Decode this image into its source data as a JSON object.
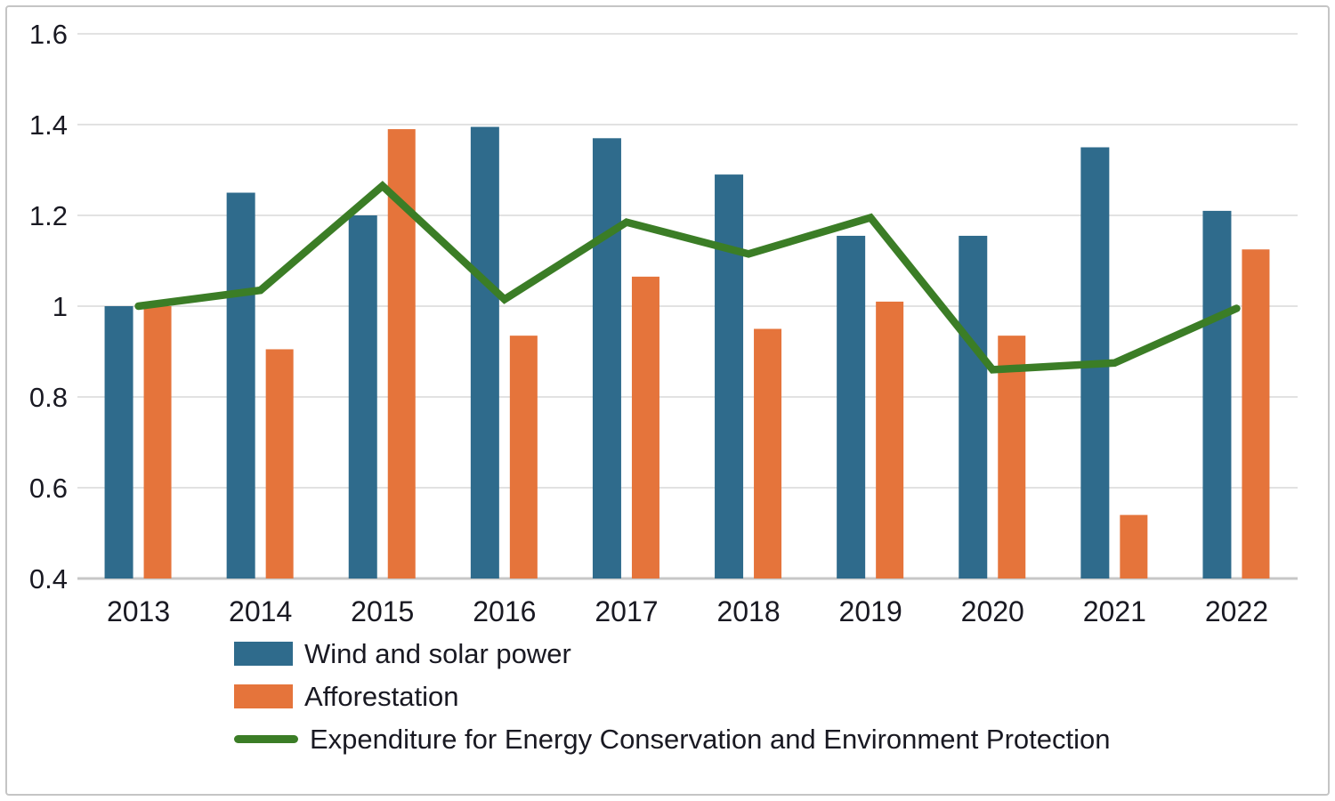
{
  "chart_data": {
    "type": "bar",
    "title": "",
    "xlabel": "",
    "ylabel": "",
    "categories": [
      "2013",
      "2014",
      "2015",
      "2016",
      "2017",
      "2018",
      "2019",
      "2020",
      "2021",
      "2022"
    ],
    "series": [
      {
        "name": "Wind and solar power",
        "key": "wind-and-solar-power",
        "type": "bar",
        "color": "#2f6b8c",
        "values": [
          1.0,
          1.25,
          1.2,
          1.395,
          1.37,
          1.29,
          1.155,
          1.155,
          1.35,
          1.21
        ]
      },
      {
        "name": "Afforestation",
        "key": "afforestation",
        "type": "bar",
        "color": "#e5743b",
        "values": [
          1.0,
          0.905,
          1.39,
          0.935,
          1.065,
          0.95,
          1.01,
          0.935,
          0.54,
          1.125
        ]
      },
      {
        "name": "Expenditure for Energy Conservation and Environment Protection",
        "key": "expenditure-energy-conservation-environment-protection",
        "type": "line",
        "color": "#3b7d26",
        "values": [
          1.0,
          1.035,
          1.265,
          1.015,
          1.185,
          1.115,
          1.195,
          0.86,
          0.875,
          0.995
        ]
      }
    ],
    "ylim": [
      0.4,
      1.6
    ],
    "yticks": [
      0.4,
      0.6,
      0.8,
      1.0,
      1.2,
      1.4,
      1.6
    ],
    "ytick_labels": [
      "0.4",
      "0.6",
      "0.8",
      "1",
      "1.2",
      "1.4",
      "1.6"
    ],
    "grid": true,
    "grid_color": "#e2e2e2",
    "axis_color": "#c7c7c7",
    "text_color": "#191922",
    "frame_border_color": "#c5c5c5",
    "legend_position": "bottom-left"
  }
}
